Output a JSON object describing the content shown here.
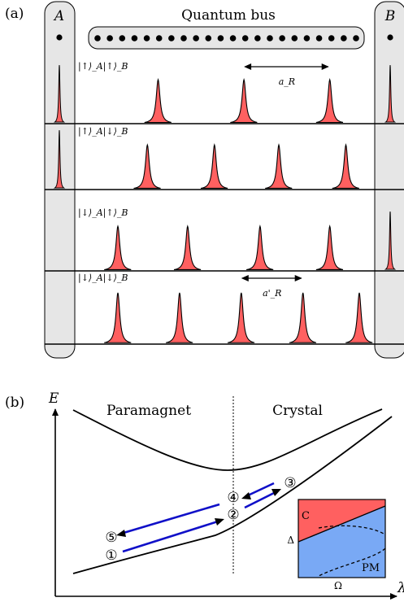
{
  "panel_a": {
    "label": "(a)",
    "site_a_label": "A",
    "site_b_label": "B",
    "bus_title": "Quantum bus",
    "bus_dots": 22,
    "rows": [
      {
        "state": "|↑⟩_A|↑⟩_B",
        "a_pulse": true,
        "b_pulse": true,
        "peaks": [
          0.25,
          0.57,
          0.89
        ],
        "spacing_label": "a_R",
        "spacing_between": [
          1,
          2
        ]
      },
      {
        "state": "|↑⟩_A|↓⟩_B",
        "a_pulse": true,
        "b_pulse": false,
        "peaks": [
          0.21,
          0.46,
          0.7,
          0.95
        ]
      },
      {
        "state": "|↓⟩_A|↑⟩_B",
        "a_pulse": false,
        "b_pulse": true,
        "peaks": [
          0.1,
          0.36,
          0.63,
          0.89
        ]
      },
      {
        "state": "|↓⟩_A|↓⟩_B",
        "a_pulse": false,
        "b_pulse": false,
        "peaks": [
          0.1,
          0.33,
          0.56,
          0.79,
          1.0
        ],
        "spacing_label": "a'_R",
        "spacing_between": [
          2,
          3
        ]
      }
    ],
    "colors": {
      "peak_fill": "#ff6060",
      "site_fill": "#e6e6e6",
      "bus_fill": "#e6e6e6"
    }
  },
  "panel_b": {
    "label": "(b)",
    "y_axis": "E",
    "x_axis": "λ",
    "region_left": "Paramagnet",
    "region_right": "Crystal",
    "steps": [
      "①",
      "②",
      "③",
      "④",
      "⑤"
    ],
    "inset": {
      "region_top": "C",
      "region_bottom": "PM",
      "x_label": "Ω",
      "y_label": "Δ",
      "colors": {
        "crystal": "#ff6060",
        "paramagnet": "#79a9f5"
      }
    },
    "colors": {
      "arrow": "#1010c8"
    }
  }
}
